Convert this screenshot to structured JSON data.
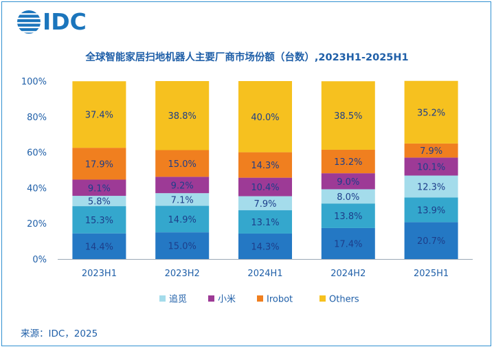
{
  "header": {
    "logo_text": "IDC",
    "title": "全球智能家居扫地机器人主要厂商市场份额（台数）,2023H1-2025H1"
  },
  "footer": {
    "source": "来源：IDC，2025"
  },
  "chart_data": {
    "type": "bar",
    "stacked": true,
    "title": "全球智能家居扫地机器人主要厂商市场份额（台数）,2023H1-2025H1",
    "xlabel": "",
    "ylabel": "",
    "ylim": [
      0,
      100
    ],
    "yticks": [
      "0%",
      "20%",
      "40%",
      "60%",
      "80%",
      "100%"
    ],
    "grid": false,
    "legend_position": "bottom",
    "categories": [
      "2023H1",
      "2023H2",
      "2024H1",
      "2024H2",
      "2025H1"
    ],
    "series": [
      {
        "name": "",
        "color": "#2478c4",
        "values": [
          14.4,
          15.0,
          14.3,
          17.4,
          20.7
        ],
        "labels": [
          "14.4%",
          "15.0%",
          "14.3%",
          "17.4%",
          "20.7%"
        ]
      },
      {
        "name": "",
        "color": "#34a7cd",
        "values": [
          15.3,
          14.9,
          13.1,
          13.8,
          13.9
        ],
        "labels": [
          "15.3%",
          "14.9%",
          "13.1%",
          "13.8%",
          "13.9%"
        ]
      },
      {
        "name": "追觅",
        "color": "#a4dceb",
        "values": [
          5.8,
          7.1,
          7.9,
          8.0,
          12.3
        ],
        "labels": [
          "5.8%",
          "7.1%",
          "7.9%",
          "8.0%",
          "12.3%"
        ]
      },
      {
        "name": "小米",
        "color": "#9d3a96",
        "values": [
          9.1,
          9.2,
          10.4,
          9.0,
          10.1
        ],
        "labels": [
          "9.1%",
          "9.2%",
          "10.4%",
          "9.0%",
          "10.1%"
        ]
      },
      {
        "name": "Irobot",
        "color": "#f07f1f",
        "values": [
          17.9,
          15.0,
          14.3,
          13.2,
          7.9
        ],
        "labels": [
          "17.9%",
          "15.0%",
          "14.3%",
          "13.2%",
          "7.9%"
        ]
      },
      {
        "name": "Others",
        "color": "#f6c11f",
        "values": [
          37.4,
          38.8,
          40.0,
          38.5,
          35.2
        ],
        "labels": [
          "37.4%",
          "38.8%",
          "40.0%",
          "38.5%",
          "35.2%"
        ]
      }
    ]
  }
}
